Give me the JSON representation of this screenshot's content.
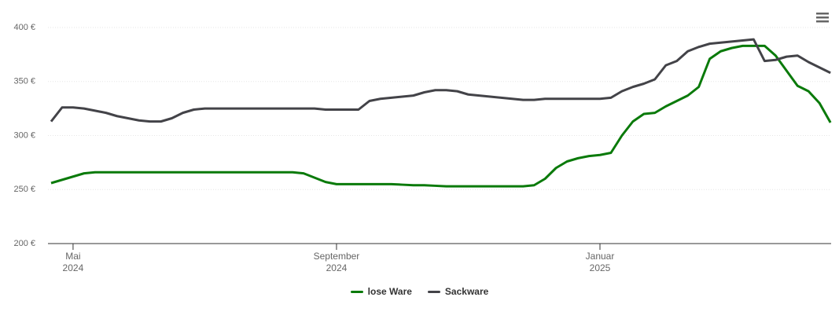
{
  "chart_data": {
    "type": "line",
    "categories": [
      null,
      null,
      "Mai 2024",
      null,
      null,
      null,
      null,
      null,
      null,
      null,
      null,
      null,
      null,
      null,
      null,
      null,
      null,
      null,
      null,
      null,
      null,
      null,
      null,
      null,
      null,
      null,
      "September 2024",
      null,
      null,
      null,
      null,
      null,
      null,
      null,
      null,
      null,
      null,
      null,
      null,
      null,
      null,
      null,
      null,
      null,
      null,
      null,
      null,
      null,
      null,
      null,
      "Januar 2025",
      null,
      null,
      null,
      null,
      null,
      null,
      null,
      null,
      null,
      null,
      null,
      null,
      null,
      null,
      null,
      null,
      null,
      null,
      null,
      null,
      null
    ],
    "series": [
      {
        "name": "lose Ware",
        "color": "#0a7a0a",
        "values": [
          256,
          259,
          262,
          265,
          266,
          266,
          266,
          266,
          266,
          266,
          266,
          266,
          266,
          266,
          266,
          266,
          266,
          266,
          266,
          266,
          266,
          266,
          266,
          265,
          261,
          257,
          255,
          255,
          255,
          255,
          255,
          255,
          254.5,
          254,
          254,
          253.5,
          253,
          253,
          253,
          253,
          253,
          253,
          253,
          253,
          254,
          260,
          270,
          276,
          279,
          281,
          282,
          284,
          300,
          313,
          320,
          321,
          327,
          332,
          337,
          345,
          371,
          378,
          381,
          383,
          383,
          383,
          374,
          360,
          346,
          341,
          330,
          312
        ]
      },
      {
        "name": "Sackware",
        "color": "#434348",
        "values": [
          313,
          326,
          326,
          325,
          323,
          321,
          318,
          316,
          314,
          313,
          313,
          316,
          321,
          324,
          325,
          325,
          325,
          325,
          325,
          325,
          325,
          325,
          325,
          325,
          325,
          324,
          324,
          324,
          324,
          332,
          334,
          335,
          336,
          337,
          340,
          342,
          342,
          341,
          338,
          337,
          336,
          335,
          334,
          333,
          333,
          334,
          334,
          334,
          334,
          334,
          334,
          335,
          341,
          345,
          348,
          352,
          365,
          369,
          378,
          382,
          385,
          386,
          387,
          388,
          389,
          369,
          370,
          373,
          374,
          368,
          363,
          358
        ]
      }
    ],
    "ylim": [
      200,
      400
    ],
    "yticks": [
      {
        "value": 200,
        "label": "200 €"
      },
      {
        "value": 250,
        "label": "250 €"
      },
      {
        "value": 300,
        "label": "300 €"
      },
      {
        "value": 350,
        "label": "350 €"
      },
      {
        "value": 400,
        "label": "400 €"
      }
    ],
    "grid": true,
    "legend": "bottom"
  }
}
